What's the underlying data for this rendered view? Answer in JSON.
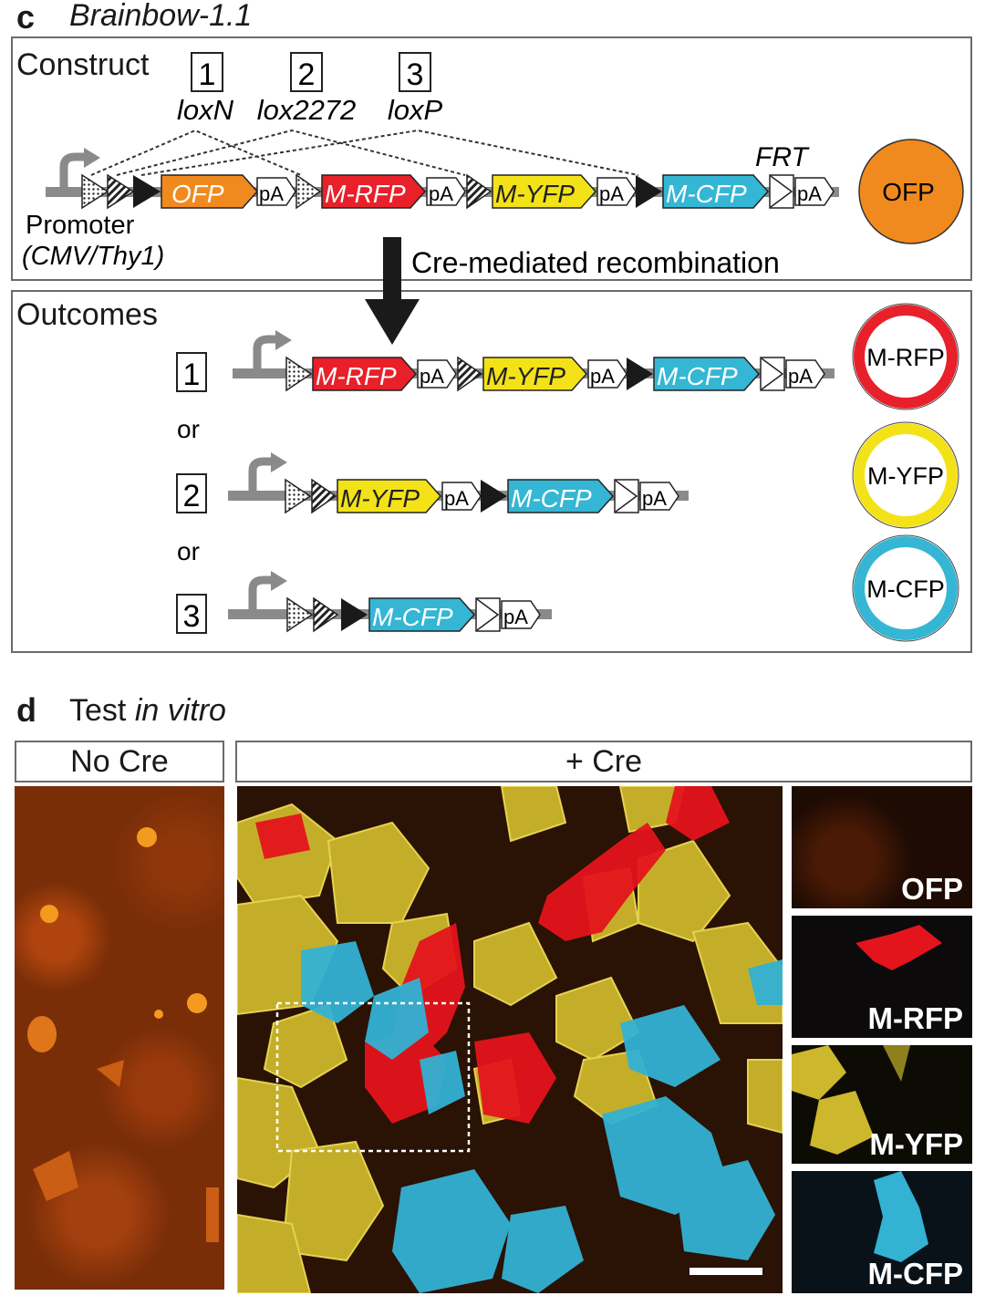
{
  "panel_c": {
    "letter": "c",
    "title": "Brainbow-1.1",
    "construct_label": "Construct",
    "sites": [
      {
        "num": "1",
        "name": "loxN"
      },
      {
        "num": "2",
        "name": "lox2272"
      },
      {
        "num": "3",
        "name": "loxP"
      }
    ],
    "frt_label": "FRT",
    "promoter_label": "Promoter",
    "promoter_types": "(CMV/Thy1)",
    "genes": {
      "ofp": "OFP",
      "rfp": "M-RFP",
      "yfp": "M-YFP",
      "cfp": "M-CFP",
      "pa": "pA"
    },
    "arrow_label": "Cre-mediated recombination",
    "outcomes_label": "Outcomes",
    "or_label": "or",
    "outcome_nums": [
      "1",
      "2",
      "3"
    ],
    "circles": [
      "OFP",
      "M-RFP",
      "M-YFP",
      "M-CFP"
    ],
    "colors": {
      "ofp": "#f18a1e",
      "rfp": "#e8202a",
      "yfp": "#f3e218",
      "cfp": "#35b6d4"
    }
  },
  "panel_d": {
    "letter": "d",
    "title_prefix": "Test ",
    "title_italic": "in vitro",
    "no_cre_label": "No Cre",
    "plus_cre_label": "+ Cre",
    "channel_labels": [
      "OFP",
      "M-RFP",
      "M-YFP",
      "M-CFP"
    ]
  }
}
